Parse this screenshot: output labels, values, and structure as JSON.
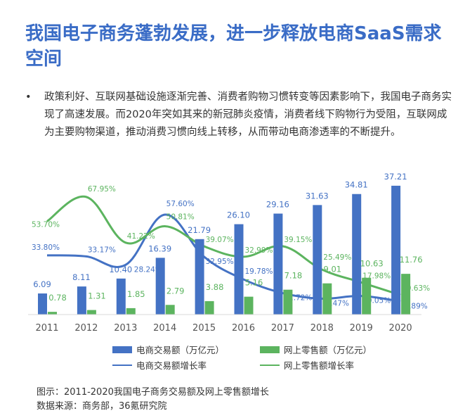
{
  "title": "我国电子商务蓬勃发展，进一步释放电商SaaS需求空间",
  "bullet": {
    "marker": "•",
    "text": "政策利好、互联网基础设施逐渐完善、消费者购物习惯转变等因素影响下，我国电子商务实现了高速发展。而2020年突如其来的新冠肺炎疫情，消费者线下购物行为受阻，互联网成为主要购物渠道，推动消费习惯向线上转移，从而带动电商渗透率的不断提升。"
  },
  "chart_data": {
    "type": "bar",
    "categories": [
      "2011",
      "2012",
      "2013",
      "2014",
      "2015",
      "2016",
      "2017",
      "2018",
      "2019",
      "2020"
    ],
    "series": [
      {
        "name": "电商交易额（万亿元）",
        "kind": "bar",
        "color": "#4472c4",
        "values": [
          6.09,
          8.11,
          10.4,
          16.39,
          21.79,
          26.1,
          29.16,
          31.63,
          34.81,
          37.21
        ],
        "labels": [
          "6.09",
          "8.11",
          "10.40",
          "16.39",
          "21.79",
          "26.10",
          "29.16",
          "31.63",
          "34.81",
          "37.21"
        ]
      },
      {
        "name": "网上零售额（万亿元）",
        "kind": "bar",
        "color": "#5cb45f",
        "values": [
          0.78,
          1.31,
          1.85,
          2.79,
          3.88,
          5.16,
          7.18,
          9.01,
          10.63,
          11.76
        ],
        "labels": [
          "0.78",
          "1.31",
          "1.85",
          "2.79",
          "3.88",
          "5.16",
          "7.18",
          "9.01",
          "10.63",
          "11.76"
        ]
      },
      {
        "name": "电商交易额增长率",
        "kind": "line",
        "color": "#4472c4",
        "values": [
          33.8,
          33.17,
          28.24,
          57.6,
          32.95,
          19.78,
          11.72,
          8.47,
          10.05,
          6.89
        ],
        "labels": [
          "33.80%",
          "33.17%",
          "28.24%",
          "57.60%",
          "32.95%",
          "19.78%",
          "11.72%",
          "8.47%",
          "10.05%",
          "6.89%"
        ]
      },
      {
        "name": "网上零售额增长率",
        "kind": "line",
        "color": "#5cb45f",
        "values": [
          53.7,
          67.95,
          41.22,
          50.81,
          39.07,
          32.99,
          39.15,
          25.49,
          17.98,
          10.63
        ],
        "labels": [
          "53.70%",
          "67.95%",
          "41.22%",
          "50.81%",
          "39.07%",
          "32.99%",
          "39.15%",
          "25.49%",
          "17.98%",
          "10.63%"
        ]
      }
    ],
    "legend": "bottom",
    "grid": false
  },
  "caption": {
    "line1": "图示：2011-2020我国电子商务交易额及网上零售额增长",
    "line2": "数据来源：商务部，36氪研究院"
  }
}
